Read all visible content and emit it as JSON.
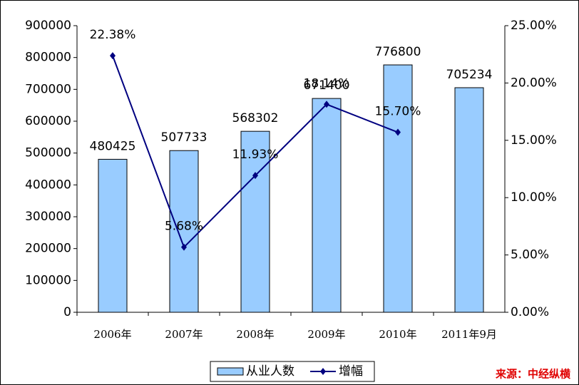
{
  "chart_data": {
    "type": "bar",
    "categories": [
      "2006年",
      "2007年",
      "2008年",
      "2009年",
      "2010年",
      "2011年9月"
    ],
    "series": [
      {
        "name": "从业人数",
        "color": "#99ccff",
        "values": [
          480425,
          507733,
          568302,
          671400,
          776800,
          705234
        ]
      },
      {
        "name": "增幅",
        "type": "line",
        "axis": "y2",
        "color": "#000080",
        "values": [
          22.38,
          5.68,
          11.93,
          18.14,
          15.7,
          null
        ],
        "value_labels": [
          "22.38%",
          "5.68%",
          "11.93%",
          "18.14%",
          "15.70%",
          null
        ]
      }
    ],
    "ylim": [
      0,
      900000
    ],
    "yticks": [
      0,
      100000,
      200000,
      300000,
      400000,
      500000,
      600000,
      700000,
      800000,
      900000
    ],
    "y2lim": [
      0,
      25
    ],
    "y2ticks": [
      {
        "value": 0,
        "label": "0.00%"
      },
      {
        "value": 5,
        "label": "5.00%"
      },
      {
        "value": 10,
        "label": "10.00%"
      },
      {
        "value": 15,
        "label": "15.00%"
      },
      {
        "value": 20,
        "label": "20.00%"
      },
      {
        "value": 25,
        "label": "25.00%"
      }
    ],
    "grid": false,
    "legend": "bottom",
    "source": "来源：中经纵横"
  }
}
